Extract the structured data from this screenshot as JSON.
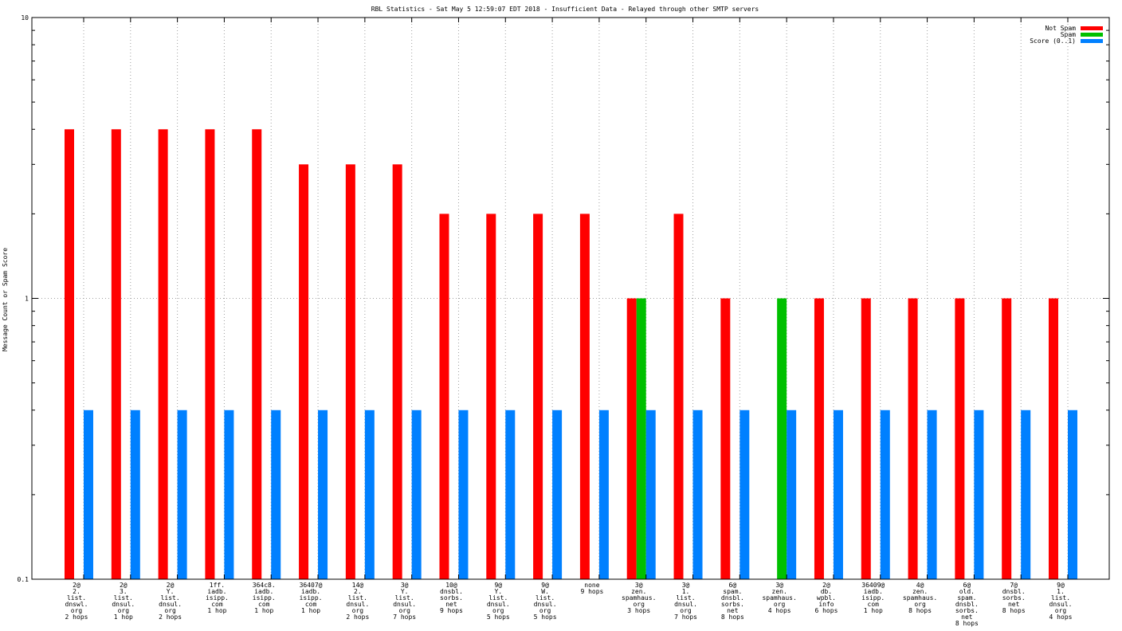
{
  "chart_data": {
    "type": "bar",
    "title": "RBL Statistics - Sat May  5 12:59:07 EDT 2018 - Insufficient Data - Relayed through other SMTP servers",
    "xlabel": "",
    "ylabel": "Message Count or Spam Score",
    "yscale": "log",
    "ylim": [
      0.1,
      10
    ],
    "yticks": [
      "0.1",
      "1",
      "10"
    ],
    "grid": true,
    "legend_position": "top-right",
    "categories": [
      [
        "2@",
        "2.",
        "list.",
        "dnswl.",
        "org",
        "2 hops"
      ],
      [
        "2@",
        "3.",
        "list.",
        "dnsul.",
        "org",
        "1 hop"
      ],
      [
        "2@",
        "Y.",
        "list.",
        "dnsul.",
        "org",
        "2 hops"
      ],
      [
        "1ff.",
        "iadb.",
        "isipp.",
        "com",
        "1 hop"
      ],
      [
        "364c8.",
        "iadb.",
        "isipp.",
        "com",
        "1 hop"
      ],
      [
        "36407@",
        "iadb.",
        "isipp.",
        "com",
        "1 hop"
      ],
      [
        "14@",
        "2.",
        "list.",
        "dnsul.",
        "org",
        "2 hops"
      ],
      [
        "3@",
        "Y.",
        "list.",
        "dnsul.",
        "org",
        "7 hops"
      ],
      [
        "10@",
        "dnsbl.",
        "sorbs.",
        "net",
        "9 hops"
      ],
      [
        "9@",
        "Y.",
        "list.",
        "dnsul.",
        "org",
        "5 hops"
      ],
      [
        "9@",
        "W.",
        "list.",
        "dnsul.",
        "org",
        "5 hops"
      ],
      [
        "none",
        "9 hops"
      ],
      [
        "3@",
        "zen.",
        "spamhaus.",
        "org",
        "3 hops"
      ],
      [
        "3@",
        "1.",
        "list.",
        "dnsul.",
        "org",
        "7 hops"
      ],
      [
        "6@",
        "spam.",
        "dnsbl.",
        "sorbs.",
        "net",
        "8 hops"
      ],
      [
        "3@",
        "zen.",
        "spamhaus.",
        "org",
        "4 hops"
      ],
      [
        "2@",
        "db.",
        "wpbl.",
        "info",
        "6 hops"
      ],
      [
        "36409@",
        "iadb.",
        "isipp.",
        "com",
        "1 hop"
      ],
      [
        "4@",
        "zen.",
        "spamhaus.",
        "org",
        "8 hops"
      ],
      [
        "6@",
        "old.",
        "spam.",
        "dnsbl.",
        "sorbs.",
        "net",
        "8 hops"
      ],
      [
        "7@",
        "dnsbl.",
        "sorbs.",
        "net",
        "8 hops"
      ],
      [
        "9@",
        "1.",
        "list.",
        "dnsul.",
        "org",
        "4 hops"
      ]
    ],
    "series": [
      {
        "name": "Not Spam",
        "color": "#ff0000",
        "values": [
          4,
          4,
          4,
          4,
          4,
          3,
          3,
          3,
          2,
          2,
          2,
          2,
          1,
          2,
          1,
          0,
          1,
          1,
          1,
          1,
          1,
          1
        ]
      },
      {
        "name": "Spam",
        "color": "#00c000",
        "values": [
          0,
          0,
          0,
          0,
          0,
          0,
          0,
          0,
          0,
          0,
          0,
          0,
          1,
          0,
          0,
          1,
          0,
          0,
          0,
          0,
          0,
          0
        ]
      },
      {
        "name": "Score (0..1)",
        "color": "#0080ff",
        "values": [
          0.4,
          0.4,
          0.4,
          0.4,
          0.4,
          0.4,
          0.4,
          0.4,
          0.4,
          0.4,
          0.4,
          0.4,
          0.4,
          0.4,
          0.4,
          0.4,
          0.4,
          0.4,
          0.4,
          0.4,
          0.4,
          0.4
        ]
      }
    ]
  }
}
